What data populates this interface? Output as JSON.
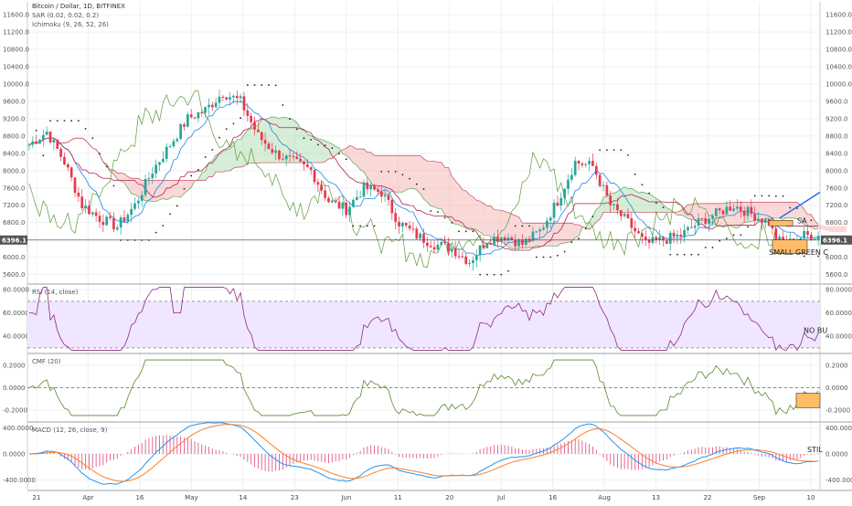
{
  "header": {
    "symbol": "Bitcoin / Dollar, 1D, BITFINEX",
    "sar": "SAR (0.02, 0.02, 0.2)",
    "ichimoku": "Ichimoku (9, 26, 52, 26)"
  },
  "pane_titles": {
    "rsi": "RSI (14, close)",
    "cmf": "CMF (20)",
    "macd": "MACD (12, 26, close, 9)"
  },
  "annotations": {
    "sar_note": "SA",
    "small_green": "SMALL GREEN C",
    "no_bull": "NO BU",
    "still": "STIL"
  },
  "colors": {
    "bull": "#26a69a",
    "bear": "#e8394f",
    "cloud_bull": "#a5d6a7",
    "cloud_bear": "#f4a9a9",
    "rsi": "#8e2a86",
    "cmf": "#5a8a2a",
    "macd": "#2196f3",
    "signal": "#ff7f27",
    "orange_box": "#ffbb66",
    "trend": "#1e6ff0"
  },
  "chart_data": [
    {
      "type": "candlestick",
      "title": "Bitcoin / Dollar, 1D, BITFINEX",
      "x_labels": [
        "21",
        "Apr",
        "16",
        "May",
        "14",
        "23",
        "Jun",
        "11",
        "20",
        "Jul",
        "16",
        "Aug",
        "13",
        "22",
        "Sep",
        "10"
      ],
      "y_ticks": [
        5600,
        6000,
        6400,
        6800,
        7200,
        7600,
        8000,
        8400,
        8800,
        9200,
        9600,
        10000,
        10400,
        10800,
        11200,
        11600
      ],
      "ylim": [
        5400,
        11900
      ],
      "last_price": "6396.1",
      "approx_close_path": [
        [
          0,
          8600
        ],
        [
          5,
          8900
        ],
        [
          10,
          8200
        ],
        [
          15,
          7200
        ],
        [
          20,
          6900
        ],
        [
          25,
          6700
        ],
        [
          30,
          7200
        ],
        [
          35,
          8000
        ],
        [
          40,
          8600
        ],
        [
          45,
          9200
        ],
        [
          50,
          9400
        ],
        [
          55,
          9800
        ],
        [
          60,
          9600
        ],
        [
          65,
          8800
        ],
        [
          70,
          8400
        ],
        [
          75,
          8200
        ],
        [
          80,
          8000
        ],
        [
          85,
          7300
        ],
        [
          90,
          7100
        ],
        [
          95,
          7600
        ],
        [
          100,
          7500
        ],
        [
          105,
          6800
        ],
        [
          110,
          6500
        ],
        [
          115,
          6300
        ],
        [
          120,
          6200
        ],
        [
          125,
          5900
        ],
        [
          130,
          6400
        ],
        [
          135,
          6500
        ],
        [
          140,
          6300
        ],
        [
          145,
          6600
        ],
        [
          150,
          7300
        ],
        [
          155,
          8200
        ],
        [
          160,
          8100
        ],
        [
          165,
          7200
        ],
        [
          170,
          6800
        ],
        [
          175,
          6300
        ],
        [
          180,
          6400
        ],
        [
          185,
          6500
        ],
        [
          190,
          6800
        ],
        [
          195,
          7000
        ],
        [
          200,
          7200
        ],
        [
          205,
          7000
        ],
        [
          210,
          6800
        ],
        [
          212,
          6400
        ],
        [
          215,
          6300
        ],
        [
          220,
          6500
        ]
      ]
    },
    {
      "type": "line",
      "title": "RSI (14, close)",
      "y_ticks": [
        40,
        60,
        80
      ],
      "ylim": [
        26,
        84
      ],
      "band": [
        30,
        70
      ]
    },
    {
      "type": "line",
      "title": "CMF (20)",
      "y_ticks": [
        -0.2,
        0.0,
        0.2
      ],
      "ylim": [
        -0.3,
        0.3
      ]
    },
    {
      "type": "line",
      "title": "MACD (12, 26, close, 9)",
      "y_ticks": [
        -400,
        0,
        400
      ],
      "ylim": [
        -550,
        480
      ],
      "series": [
        {
          "name": "MACD"
        },
        {
          "name": "Signal"
        },
        {
          "name": "Histogram"
        }
      ]
    }
  ]
}
